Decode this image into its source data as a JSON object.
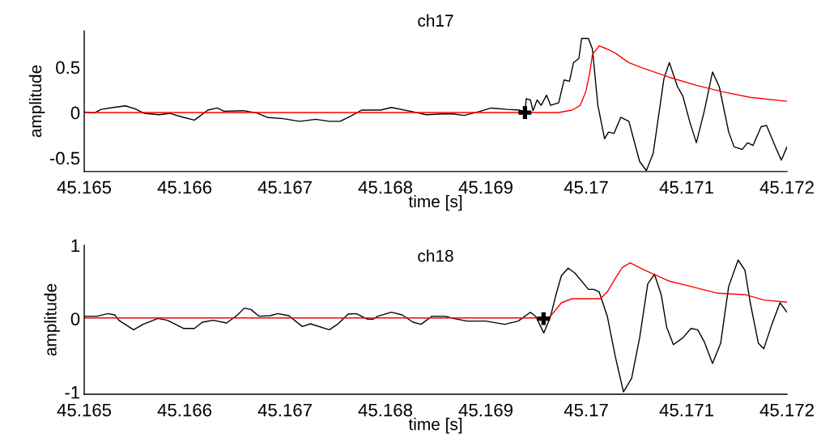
{
  "chart_data": [
    {
      "type": "line",
      "title": "ch17",
      "xlabel": "time [s]",
      "ylabel": "amplitude",
      "xlim": [
        45.165,
        45.172
      ],
      "xticks": [
        45.165,
        45.166,
        45.167,
        45.168,
        45.169,
        45.17,
        45.171,
        45.172
      ],
      "ylim": [
        -0.65,
        0.9
      ],
      "yticks": [
        -0.5,
        0,
        0.5
      ],
      "grid": false,
      "series": [
        {
          "color": "#000000",
          "x": [
            45.165,
            45.165102,
            45.165169,
            45.16529,
            45.165411,
            45.165505,
            45.165599,
            45.165747,
            45.165855,
            45.165989,
            45.166097,
            45.166231,
            45.166325,
            45.166392,
            45.166581,
            45.166715,
            45.166823,
            45.166984,
            45.167145,
            45.167306,
            45.167441,
            45.167548,
            45.167656,
            45.167763,
            45.167952,
            45.168059,
            45.168247,
            45.168409,
            45.16857,
            45.168677,
            45.168785,
            45.168946,
            45.169054,
            45.169215,
            45.169336,
            45.16939,
            45.169403,
            45.169444,
            45.16947,
            45.169511,
            45.169551,
            45.169605,
            45.169645,
            45.169726,
            45.16978,
            45.169833,
            45.169874,
            45.169927,
            45.169954,
            45.170022,
            45.170062,
            45.170116,
            45.170183,
            45.170223,
            45.170277,
            45.170344,
            45.170425,
            45.170532,
            45.170599,
            45.170667,
            45.170774,
            45.170828,
            45.170909,
            45.170962,
            45.17103,
            45.171097,
            45.171177,
            45.171258,
            45.171325,
            45.171419,
            45.171473,
            45.171554,
            45.171607,
            45.171661,
            45.171742,
            45.171796,
            45.17189,
            45.171944,
            45.172
          ],
          "values": [
            0.006,
            -0.003,
            0.035,
            0.056,
            0.074,
            0.041,
            -0.009,
            -0.024,
            -0.009,
            -0.053,
            -0.083,
            0.027,
            0.05,
            0.015,
            0.021,
            -0.003,
            -0.053,
            -0.068,
            -0.097,
            -0.074,
            -0.097,
            -0.097,
            -0.038,
            0.027,
            0.027,
            0.056,
            0.015,
            -0.024,
            -0.015,
            -0.015,
            -0.032,
            0.015,
            0.05,
            0.035,
            0.027,
            0.006,
            0.153,
            0.139,
            0.021,
            0.139,
            0.08,
            0.192,
            0.08,
            0.109,
            0.36,
            0.345,
            0.551,
            0.596,
            0.817,
            0.817,
            0.699,
            0.08,
            -0.289,
            -0.215,
            -0.23,
            -0.053,
            -0.097,
            -0.54,
            -0.64,
            -0.451,
            0.374,
            0.551,
            0.286,
            0.183,
            -0.097,
            -0.333,
            0.021,
            0.448,
            0.286,
            -0.215,
            -0.378,
            -0.407,
            -0.333,
            -0.363,
            -0.156,
            -0.142,
            -0.392,
            -0.525,
            -0.378
          ]
        },
        {
          "color": "#ff0000",
          "x": [
            45.165,
            45.169726,
            45.16986,
            45.169941,
            45.169995,
            45.170035,
            45.170062,
            45.170129,
            45.17021,
            45.17029,
            45.170425,
            45.170559,
            45.170828,
            45.171097,
            45.171366,
            45.171634,
            45.172
          ],
          "values": [
            0,
            0,
            0.027,
            0.08,
            0.227,
            0.434,
            0.64,
            0.735,
            0.699,
            0.655,
            0.551,
            0.493,
            0.389,
            0.301,
            0.227,
            0.168,
            0.124
          ]
        },
        {
          "type": "scatter",
          "color": "#000000",
          "marker": "cross",
          "x": [
            45.16939
          ],
          "values": [
            0
          ]
        }
      ]
    },
    {
      "type": "line",
      "title": "ch18",
      "xlabel": "time [s]",
      "ylabel": "amplitude",
      "xlim": [
        45.165,
        45.172
      ],
      "xticks": [
        45.165,
        45.166,
        45.167,
        45.168,
        45.169,
        45.17,
        45.171,
        45.172
      ],
      "ylim": [
        -1.03,
        1
      ],
      "yticks": [
        -1,
        0,
        1
      ],
      "grid": false,
      "series": [
        {
          "color": "#000000",
          "x": [
            45.165,
            45.165129,
            45.165237,
            45.165304,
            45.165344,
            45.165492,
            45.165586,
            45.165734,
            45.165828,
            45.165989,
            45.166097,
            45.166177,
            45.166285,
            45.166419,
            45.166527,
            45.166594,
            45.166661,
            45.166742,
            45.166849,
            45.16693,
            45.167038,
            45.167172,
            45.167253,
            45.167441,
            45.167522,
            45.167629,
            45.16771,
            45.167817,
            45.167871,
            45.167925,
            45.168059,
            45.168167,
            45.168274,
            45.168355,
            45.168462,
            45.168597,
            45.168677,
            45.168812,
            45.169,
            45.169188,
            45.169323,
            45.169444,
            45.169497,
            45.169578,
            45.169645,
            45.169699,
            45.169753,
            45.16982,
            45.169887,
            45.170022,
            45.170075,
            45.170129,
            45.17021,
            45.17029,
            45.170371,
            45.170452,
            45.170532,
            45.170613,
            45.17068,
            45.170747,
            45.170801,
            45.170868,
            45.170962,
            45.171043,
            45.17111,
            45.171177,
            45.171258,
            45.171339,
            45.171419,
            45.171513,
            45.171581,
            45.171634,
            45.171715,
            45.171769,
            45.171849,
            45.17193,
            45.172
          ],
          "values": [
            0.033,
            0.033,
            0.07,
            0.052,
            -0.022,
            -0.151,
            -0.077,
            0.004,
            -0.022,
            -0.133,
            -0.133,
            -0.048,
            -0.022,
            -0.059,
            0.052,
            0.144,
            0.125,
            0.033,
            0.041,
            0.07,
            0.041,
            -0.107,
            -0.07,
            -0.151,
            -0.077,
            0.063,
            0.07,
            -0.004,
            -0.011,
            0.033,
            0.088,
            0.052,
            -0.048,
            -0.077,
            0.033,
            0.033,
            0.004,
            -0.033,
            -0.033,
            -0.077,
            -0.033,
            0.088,
            0.033,
            -0.195,
            0.033,
            0.328,
            0.586,
            0.689,
            0.622,
            0.401,
            0.401,
            0.365,
            0.033,
            -0.519,
            -0.998,
            -0.814,
            -0.262,
            0.475,
            0.604,
            0.328,
            -0.114,
            -0.354,
            -0.262,
            -0.133,
            -0.151,
            -0.317,
            -0.611,
            -0.335,
            0.439,
            0.799,
            0.659,
            0.217,
            -0.335,
            -0.409,
            -0.077,
            0.217,
            0.088
          ]
        },
        {
          "color": "#ff0000",
          "x": [
            45.165,
            45.169591,
            45.169645,
            45.169753,
            45.16986,
            45.170142,
            45.17021,
            45.17029,
            45.170358,
            45.170438,
            45.170559,
            45.170828,
            45.171043,
            45.171312,
            45.171581,
            45.171769,
            45.172
          ],
          "values": [
            0.01,
            0.01,
            0.033,
            0.217,
            0.272,
            0.272,
            0.365,
            0.549,
            0.696,
            0.762,
            0.677,
            0.512,
            0.439,
            0.346,
            0.328,
            0.254,
            0.225
          ]
        },
        {
          "type": "scatter",
          "color": "#000000",
          "marker": "cross",
          "x": [
            45.169575
          ],
          "values": [
            0
          ]
        }
      ]
    }
  ]
}
